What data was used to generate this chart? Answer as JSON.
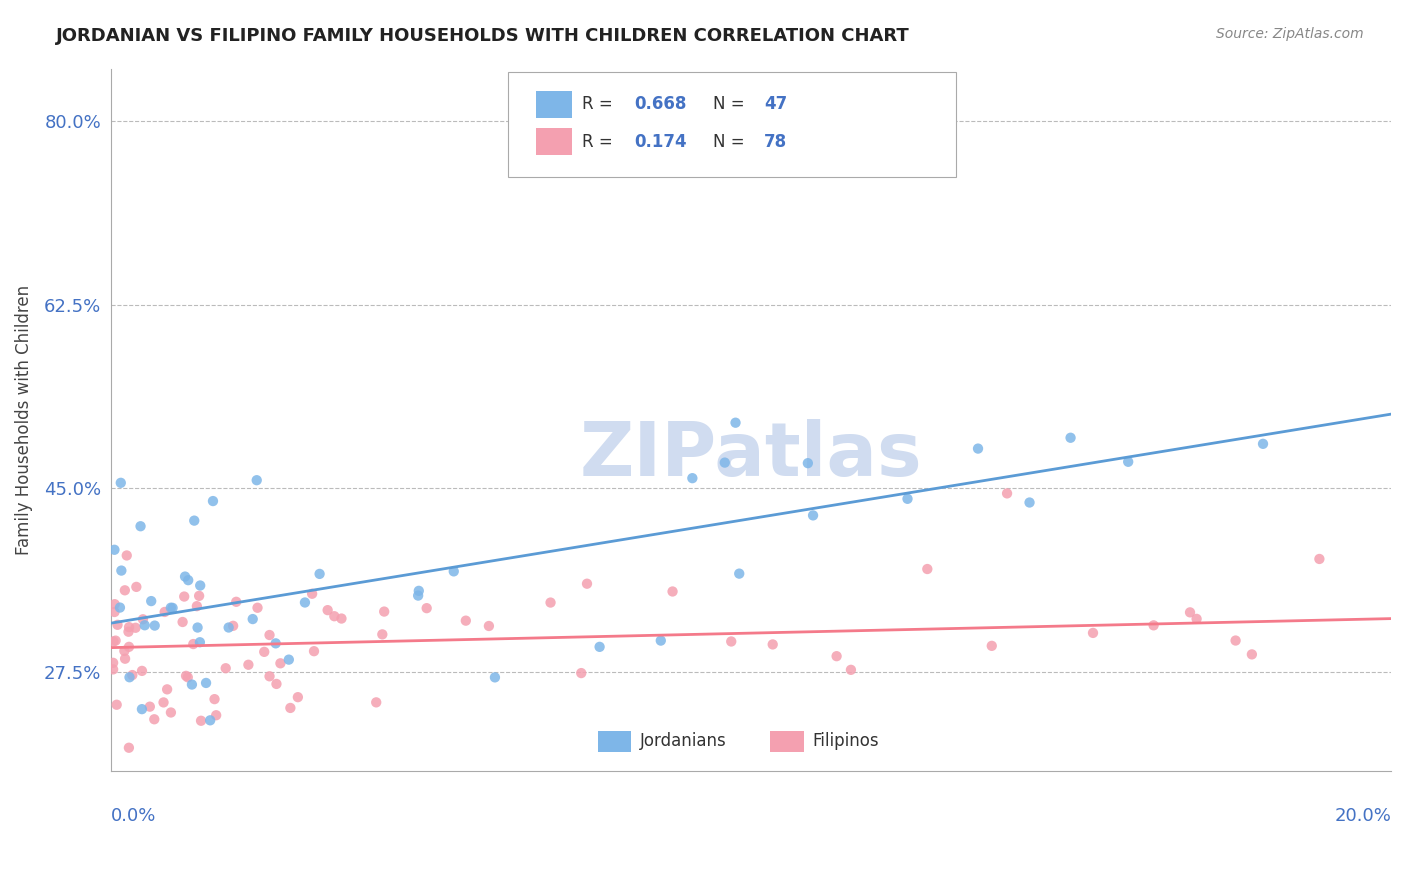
{
  "title": "JORDANIAN VS FILIPINO FAMILY HOUSEHOLDS WITH CHILDREN CORRELATION CHART",
  "source": "Source: ZipAtlas.com",
  "ylabel": "Family Households with Children",
  "yticks": [
    27.5,
    45.0,
    62.5,
    80.0
  ],
  "ytick_labels": [
    "27.5%",
    "45.0%",
    "62.5%",
    "80.0%"
  ],
  "xlim": [
    0.0,
    20.0
  ],
  "ylim": [
    18.0,
    85.0
  ],
  "r_jordanian": 0.668,
  "n_jordanian": 47,
  "r_filipino": 0.174,
  "n_filipino": 78,
  "color_jordanian": "#7EB6E8",
  "color_filipino": "#F4A0B0",
  "color_line_jordanian": "#5B9BD5",
  "color_line_filipino": "#F47A8A",
  "watermark": "ZIPatlas",
  "watermark_color": "#D0DCF0",
  "background_color": "#FFFFFF",
  "title_color": "#222222",
  "axis_label_color": "#4472C4",
  "legend_r_color": "#4472C4",
  "legend_n_color": "#4472C4",
  "grid_color": "#BBBBBB"
}
